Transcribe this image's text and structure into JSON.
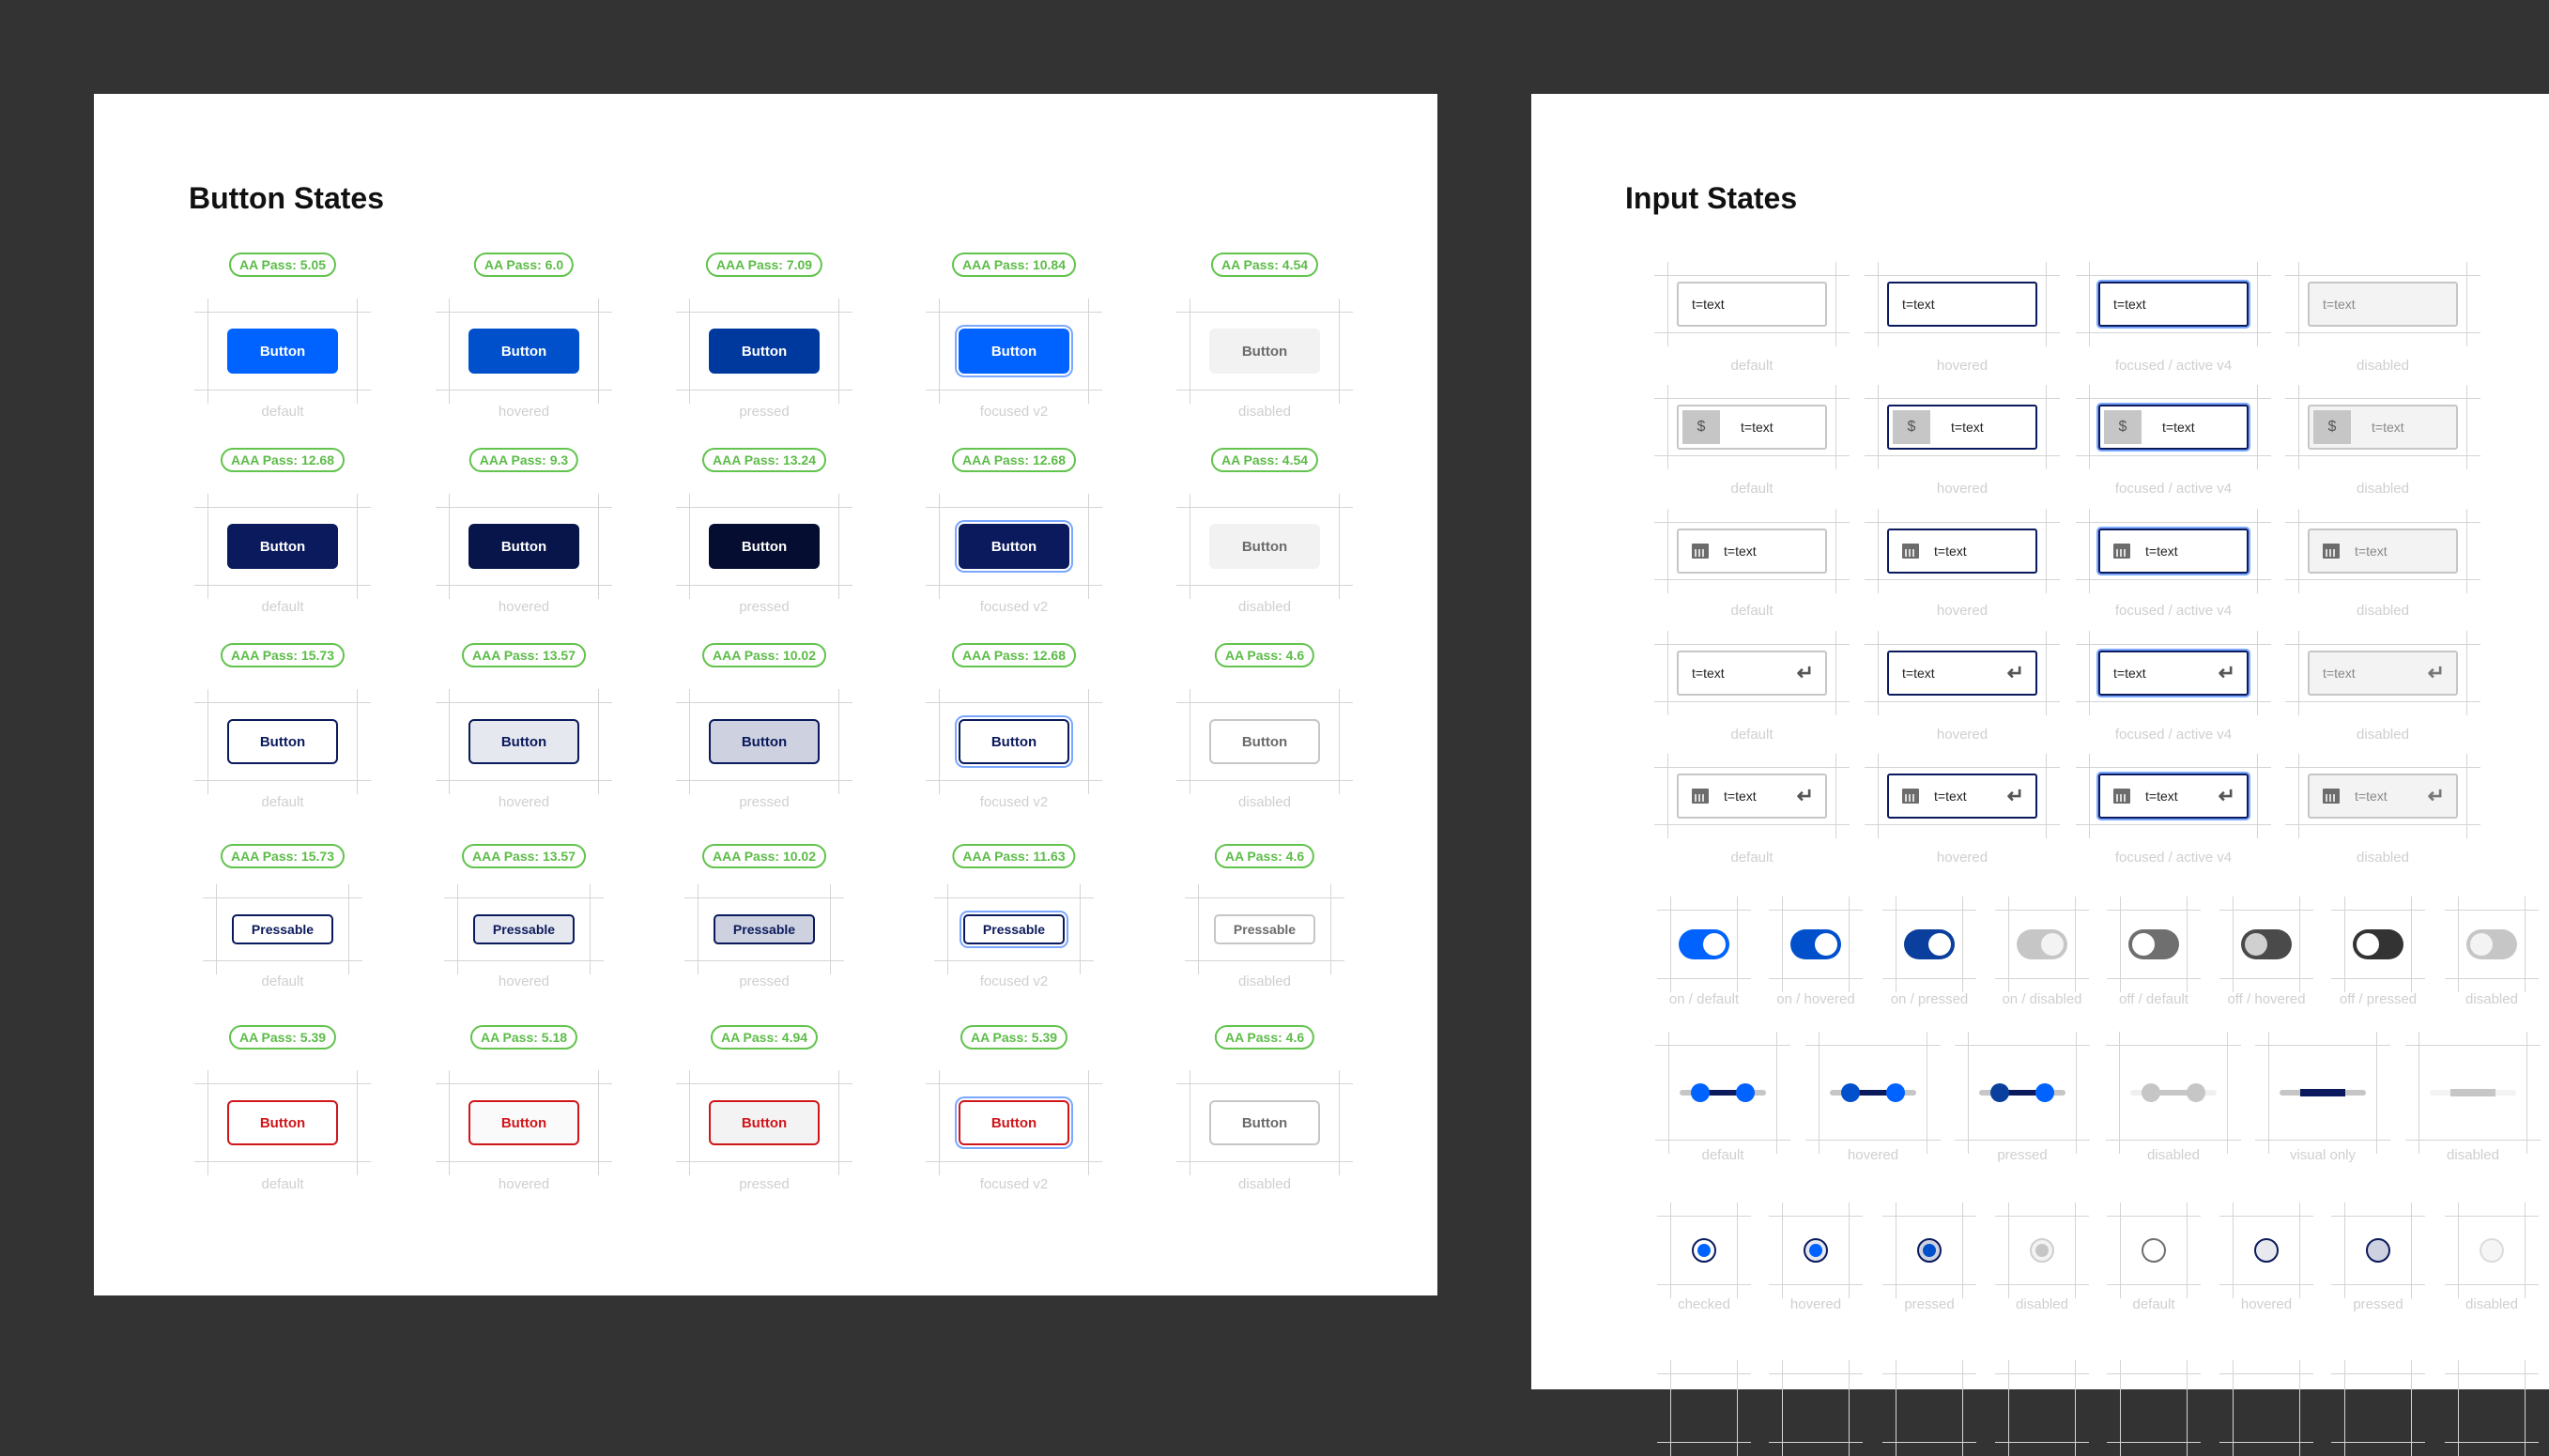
{
  "colors": {
    "badge_green": "#5cbc48",
    "primary": "#0062ff",
    "navy": "#0b1a5c",
    "danger": "#d0161b",
    "focus_ring": "#7aa7ff",
    "disabled_bg": "#f2f2f2",
    "guide": "#d4d4d4"
  },
  "button_states": {
    "title": "Button States",
    "rows": [
      {
        "variant": "primary",
        "items": [
          {
            "badge": "AA Pass: 5.05",
            "label": "Button",
            "state": "default"
          },
          {
            "badge": "AA Pass: 6.0",
            "label": "Button",
            "state": "hovered"
          },
          {
            "badge": "AAA Pass: 7.09",
            "label": "Button",
            "state": "pressed"
          },
          {
            "badge": "AAA Pass: 10.84",
            "label": "Button",
            "state": "focused v2"
          },
          {
            "badge": "AA Pass: 4.54",
            "label": "Button",
            "state": "disabled"
          }
        ]
      },
      {
        "variant": "dark",
        "items": [
          {
            "badge": "AAA Pass: 12.68",
            "label": "Button",
            "state": "default"
          },
          {
            "badge": "AAA Pass: 9.3",
            "label": "Button",
            "state": "hovered"
          },
          {
            "badge": "AAA Pass: 13.24",
            "label": "Button",
            "state": "pressed"
          },
          {
            "badge": "AAA Pass: 12.68",
            "label": "Button",
            "state": "focused v2"
          },
          {
            "badge": "AA Pass: 4.54",
            "label": "Button",
            "state": "disabled"
          }
        ]
      },
      {
        "variant": "outline",
        "items": [
          {
            "badge": "AAA Pass: 15.73",
            "label": "Button",
            "state": "default"
          },
          {
            "badge": "AAA Pass: 13.57",
            "label": "Button",
            "state": "hovered"
          },
          {
            "badge": "AAA Pass: 10.02",
            "label": "Button",
            "state": "pressed"
          },
          {
            "badge": "AAA Pass: 12.68",
            "label": "Button",
            "state": "focused v2"
          },
          {
            "badge": "AA Pass: 4.6",
            "label": "Button",
            "state": "disabled"
          }
        ]
      },
      {
        "variant": "pressable",
        "items": [
          {
            "badge": "AAA Pass: 15.73",
            "label": "Pressable",
            "state": "default"
          },
          {
            "badge": "AAA Pass: 13.57",
            "label": "Pressable",
            "state": "hovered"
          },
          {
            "badge": "AAA Pass: 10.02",
            "label": "Pressable",
            "state": "pressed"
          },
          {
            "badge": "AAA Pass: 11.63",
            "label": "Pressable",
            "state": "focused v2"
          },
          {
            "badge": "AA Pass: 4.6",
            "label": "Pressable",
            "state": "disabled"
          }
        ]
      },
      {
        "variant": "danger",
        "items": [
          {
            "badge": "AA Pass: 5.39",
            "label": "Button",
            "state": "default"
          },
          {
            "badge": "AA Pass: 5.18",
            "label": "Button",
            "state": "hovered"
          },
          {
            "badge": "AA Pass: 4.94",
            "label": "Button",
            "state": "pressed"
          },
          {
            "badge": "AA Pass: 5.39",
            "label": "Button",
            "state": "focused v2"
          },
          {
            "badge": "AA Pass: 4.6",
            "label": "Button",
            "state": "disabled"
          }
        ]
      }
    ]
  },
  "input_states": {
    "title": "Input States",
    "states": [
      "default",
      "hovered",
      "focused / active v4",
      "disabled"
    ],
    "rows": [
      {
        "type": "plain",
        "value": "t=text"
      },
      {
        "type": "currency",
        "value": "t=text",
        "prefix": "$"
      },
      {
        "type": "date",
        "value": "t=text",
        "icon": "calendar-icon"
      },
      {
        "type": "enter",
        "value": "t=text",
        "icon": "enter-icon"
      },
      {
        "type": "date-enter",
        "value": "t=text",
        "icon": "calendar-icon"
      }
    ],
    "toggles": [
      {
        "on": true,
        "state": "on / default"
      },
      {
        "on": true,
        "state": "on / hovered"
      },
      {
        "on": true,
        "state": "on / pressed"
      },
      {
        "on": true,
        "state": "on / disabled"
      },
      {
        "on": false,
        "state": "off / default"
      },
      {
        "on": false,
        "state": "off / hovered"
      },
      {
        "on": false,
        "state": "off / pressed"
      },
      {
        "on": false,
        "state": "disabled"
      }
    ],
    "sliders": [
      {
        "state": "default"
      },
      {
        "state": "hovered"
      },
      {
        "state": "pressed"
      },
      {
        "state": "disabled"
      },
      {
        "state": "visual only"
      },
      {
        "state": "disabled"
      }
    ],
    "radios": [
      {
        "checked": true,
        "state": "checked"
      },
      {
        "checked": true,
        "state": "hovered"
      },
      {
        "checked": true,
        "state": "pressed"
      },
      {
        "checked": true,
        "state": "disabled"
      },
      {
        "checked": false,
        "state": "default"
      },
      {
        "checked": false,
        "state": "hovered"
      },
      {
        "checked": false,
        "state": "pressed"
      },
      {
        "checked": false,
        "state": "disabled"
      }
    ]
  }
}
